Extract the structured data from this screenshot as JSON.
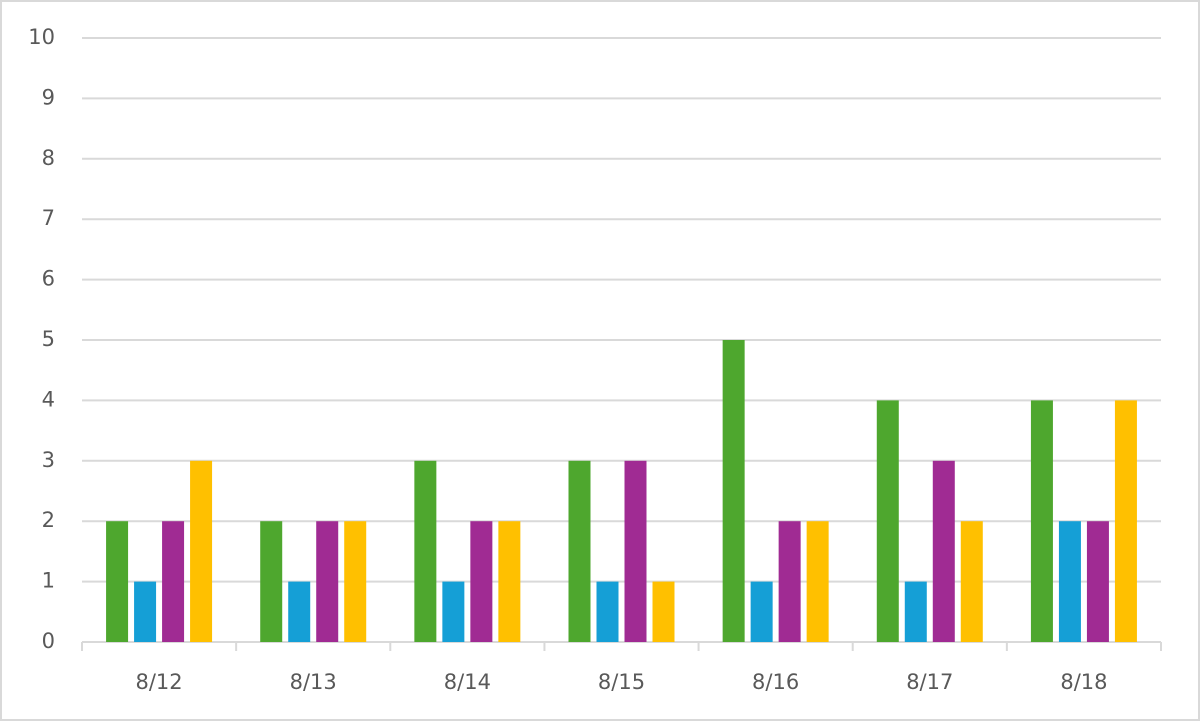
{
  "chart_data": {
    "type": "bar",
    "categories": [
      "8/12",
      "8/13",
      "8/14",
      "8/15",
      "8/16",
      "8/17",
      "8/18"
    ],
    "series": [
      {
        "color": "#4ea72e",
        "values": [
          2,
          2,
          3,
          3,
          5,
          4,
          4
        ]
      },
      {
        "color": "#159fd6",
        "values": [
          1,
          1,
          1,
          1,
          1,
          1,
          2
        ]
      },
      {
        "color": "#a02b93",
        "values": [
          2,
          2,
          2,
          3,
          2,
          3,
          2
        ]
      },
      {
        "color": "#ffc000",
        "values": [
          3,
          2,
          2,
          1,
          2,
          2,
          4
        ]
      }
    ],
    "ylim": [
      0,
      10
    ],
    "yticks": [
      0,
      1,
      2,
      3,
      4,
      5,
      6,
      7,
      8,
      9,
      10
    ],
    "grid": true
  }
}
